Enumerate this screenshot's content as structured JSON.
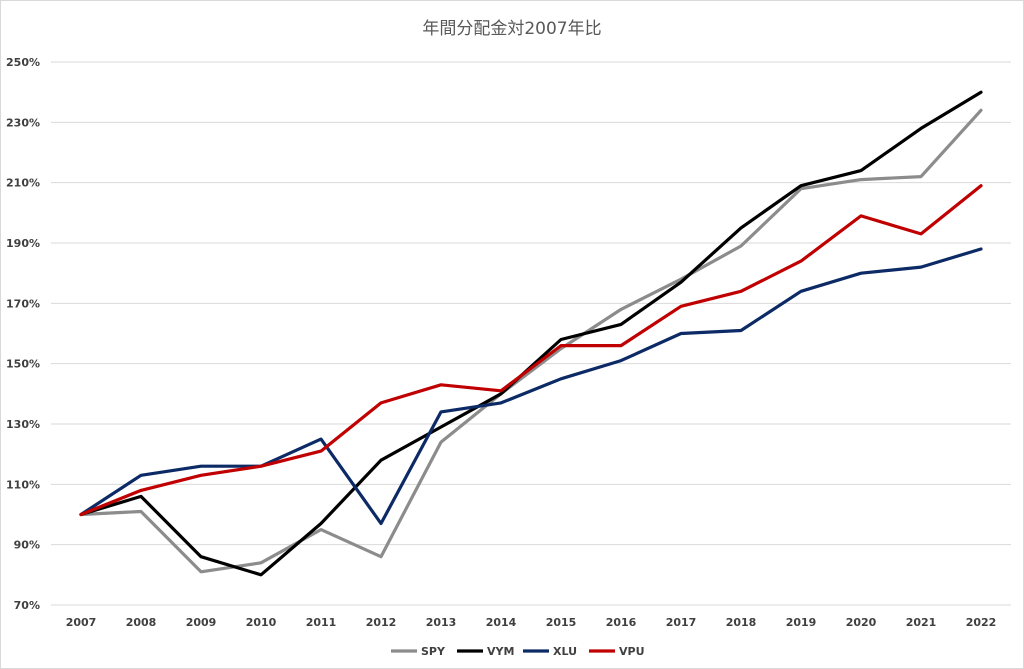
{
  "chart_data": {
    "type": "line",
    "title": "年間分配金対2007年比",
    "xlabel": "",
    "ylabel": "",
    "categories": [
      "2007",
      "2008",
      "2009",
      "2010",
      "2011",
      "2012",
      "2013",
      "2014",
      "2015",
      "2016",
      "2017",
      "2018",
      "2019",
      "2020",
      "2021",
      "2022"
    ],
    "y_ticks": [
      "70%",
      "90%",
      "110%",
      "130%",
      "150%",
      "170%",
      "190%",
      "210%",
      "230%",
      "250%"
    ],
    "ylim": [
      70,
      250
    ],
    "grid": true,
    "legend_position": "bottom",
    "series": [
      {
        "name": "SPY",
        "color": "#8c8c8c",
        "values": [
          100,
          101,
          81,
          84,
          95,
          86,
          124,
          140,
          155,
          168,
          178,
          189,
          208,
          211,
          212,
          234
        ]
      },
      {
        "name": "VYM",
        "color": "#000000",
        "values": [
          100,
          106,
          86,
          80,
          97,
          118,
          129,
          140,
          158,
          163,
          177,
          195,
          209,
          214,
          228,
          240
        ]
      },
      {
        "name": "XLU",
        "color": "#0c2a66",
        "values": [
          100,
          113,
          116,
          116,
          125,
          97,
          134,
          137,
          145,
          151,
          160,
          161,
          174,
          180,
          182,
          188
        ]
      },
      {
        "name": "VPU",
        "color": "#c00000",
        "values": [
          100,
          108,
          113,
          116,
          121,
          137,
          143,
          141,
          156,
          156,
          169,
          174,
          184,
          199,
          193,
          209
        ]
      }
    ]
  }
}
